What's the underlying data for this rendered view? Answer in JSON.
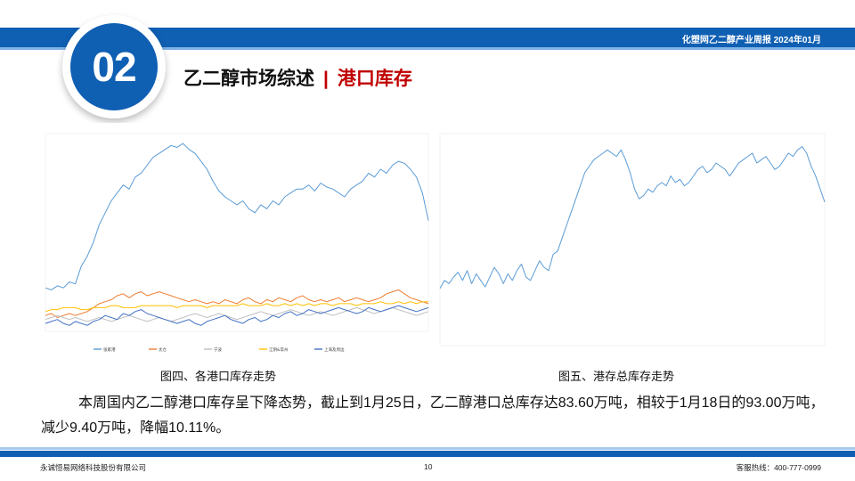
{
  "header": {
    "right_label": "化塑网乙二醇产业周报   2024年01月"
  },
  "section": {
    "number": "02",
    "title_main": "乙二醇市场综述",
    "title_sep": "|",
    "title_sub": "港口库存"
  },
  "colors": {
    "brand_blue": "#0f5fb3",
    "accent_red": "#c00000"
  },
  "figures": {
    "left_caption": "图四、各港口库存走势",
    "right_caption": "图五、港存总库存走势"
  },
  "paragraph": "本周国内乙二醇港口库存呈下降态势，截止到1月25日，乙二醇港口总库存达83.60万吨，相较于1月18日的93.00万吨，减少9.40万吨，降幅10.11%。",
  "footer": {
    "company": "永诚恒易网络科技股份有限公司",
    "page": "10",
    "hotline": "客服热线：400-777-0999"
  },
  "chart_data": [
    {
      "type": "line",
      "title": "",
      "series": [
        {
          "name": "张家港",
          "color": "#5b9bd5",
          "values": [
            22,
            21,
            23,
            22,
            25,
            24,
            33,
            38,
            45,
            54,
            60,
            66,
            70,
            74,
            72,
            78,
            80,
            84,
            88,
            90,
            92,
            94,
            93,
            95,
            92,
            90,
            86,
            82,
            76,
            71,
            68,
            66,
            64,
            66,
            62,
            60,
            64,
            62,
            66,
            64,
            68,
            70,
            72,
            72,
            74,
            71,
            75,
            73,
            72,
            70,
            68,
            72,
            74,
            76,
            80,
            78,
            82,
            80,
            84,
            86,
            85,
            82,
            78,
            70,
            56
          ]
        },
        {
          "name": "太仓",
          "color": "#ed7d31",
          "values": [
            8,
            9,
            7,
            8,
            9,
            8,
            9,
            10,
            12,
            14,
            15,
            16,
            18,
            19,
            17,
            19,
            20,
            18,
            19,
            20,
            19,
            18,
            17,
            16,
            15,
            16,
            15,
            14,
            15,
            14,
            16,
            15,
            14,
            16,
            17,
            15,
            14,
            16,
            15,
            17,
            16,
            15,
            17,
            18,
            16,
            15,
            16,
            15,
            16,
            17,
            15,
            16,
            17,
            16,
            15,
            16,
            17,
            19,
            20,
            21,
            19,
            17,
            16,
            15,
            14
          ]
        },
        {
          "name": "宁波",
          "color": "#bfbfbf",
          "values": [
            6,
            7,
            8,
            7,
            6,
            7,
            6,
            5,
            6,
            7,
            6,
            5,
            6,
            7,
            8,
            7,
            6,
            5,
            6,
            7,
            6,
            5,
            6,
            7,
            8,
            9,
            8,
            7,
            8,
            9,
            8,
            7,
            6,
            7,
            8,
            9,
            10,
            9,
            8,
            9,
            10,
            11,
            10,
            9,
            8,
            9,
            10,
            9,
            8,
            9,
            10,
            11,
            12,
            11,
            10,
            9,
            10,
            11,
            12,
            11,
            10,
            9,
            8,
            9,
            10
          ]
        },
        {
          "name": "江阴&常州",
          "color": "#ffc000",
          "values": [
            10,
            11,
            11,
            12,
            12,
            12,
            11,
            11,
            12,
            12,
            12,
            13,
            13,
            12,
            12,
            12,
            13,
            13,
            13,
            13,
            13,
            13,
            12,
            13,
            13,
            13,
            13,
            12,
            13,
            13,
            13,
            13,
            13,
            14,
            13,
            13,
            13,
            14,
            13,
            13,
            14,
            13,
            14,
            13,
            14,
            13,
            14,
            14,
            13,
            14,
            14,
            14,
            13,
            14,
            14,
            14,
            15,
            14,
            14,
            15,
            14,
            15,
            14,
            15,
            15
          ]
        },
        {
          "name": "上海及周边",
          "color": "#4472c4",
          "values": [
            4,
            5,
            6,
            4,
            3,
            5,
            4,
            3,
            5,
            6,
            8,
            7,
            6,
            9,
            8,
            10,
            11,
            9,
            8,
            7,
            6,
            5,
            4,
            5,
            6,
            4,
            3,
            5,
            6,
            7,
            8,
            6,
            5,
            4,
            6,
            7,
            5,
            6,
            8,
            7,
            9,
            10,
            8,
            9,
            11,
            10,
            9,
            10,
            11,
            12,
            11,
            10,
            9,
            10,
            12,
            11,
            10,
            11,
            12,
            13,
            12,
            11,
            10,
            11,
            12
          ]
        }
      ]
    },
    {
      "type": "line",
      "title": "",
      "series": [
        {
          "name": "",
          "color": "#5b9bd5",
          "values": [
            35,
            40,
            38,
            42,
            45,
            40,
            46,
            38,
            44,
            40,
            36,
            42,
            48,
            44,
            38,
            44,
            40,
            46,
            50,
            42,
            40,
            46,
            52,
            48,
            46,
            56,
            58,
            66,
            74,
            82,
            90,
            98,
            106,
            110,
            114,
            116,
            118,
            120,
            118,
            116,
            120,
            114,
            106,
            96,
            90,
            92,
            96,
            94,
            98,
            100,
            98,
            104,
            100,
            102,
            98,
            100,
            104,
            108,
            110,
            106,
            108,
            112,
            110,
            108,
            104,
            108,
            112,
            114,
            116,
            118,
            112,
            114,
            116,
            112,
            108,
            110,
            114,
            118,
            116,
            120,
            122,
            118,
            110,
            104,
            96,
            88
          ]
        }
      ]
    }
  ]
}
